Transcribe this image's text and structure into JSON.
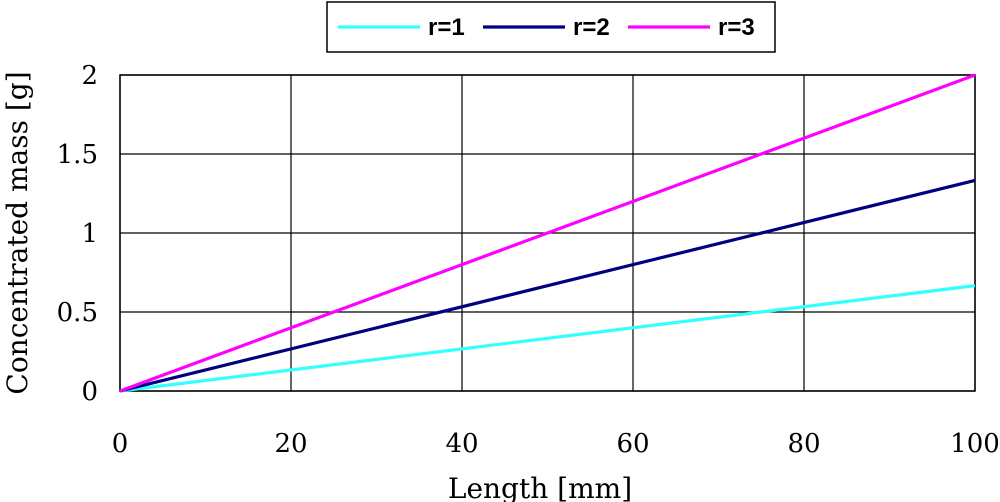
{
  "chart_data": {
    "type": "line",
    "xlabel": "Length [mm]",
    "ylabel": "Concentrated mass [g]",
    "xlim": [
      0,
      100
    ],
    "ylim": [
      0,
      2
    ],
    "x_ticks": [
      "0",
      "20",
      "40",
      "60",
      "80",
      "100"
    ],
    "y_ticks": [
      "0",
      "0.5",
      "1",
      "1.5",
      "2"
    ],
    "grid": true,
    "legend_position": "top-center",
    "x": [
      0,
      100
    ],
    "series": [
      {
        "name": "r=1",
        "color": "#33ffff",
        "values": [
          0,
          0.667
        ]
      },
      {
        "name": "r=2",
        "color": "#000080",
        "values": [
          0,
          1.333
        ]
      },
      {
        "name": "r=3",
        "color": "#ff00ff",
        "values": [
          0,
          2.0
        ]
      }
    ]
  }
}
